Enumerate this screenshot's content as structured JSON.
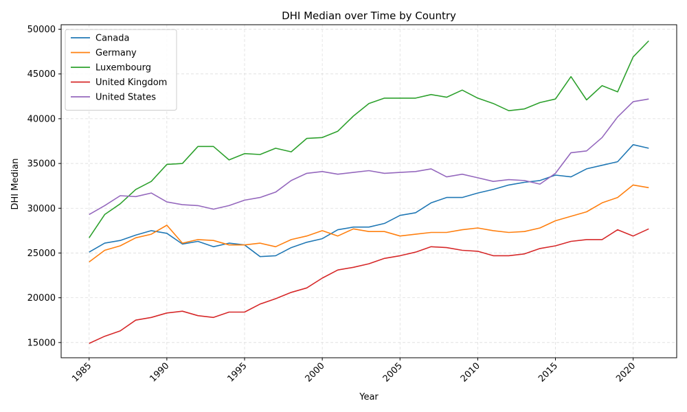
{
  "chart_data": {
    "type": "line",
    "title": "DHI Median over Time by Country",
    "xlabel": "Year",
    "ylabel": "DHI Median",
    "xlim": [
      1983.2,
      2022.8
    ],
    "ylim": [
      13300,
      50500
    ],
    "xticks": [
      1985,
      1990,
      1995,
      2000,
      2005,
      2010,
      2015,
      2020
    ],
    "yticks": [
      15000,
      20000,
      25000,
      30000,
      35000,
      40000,
      45000,
      50000
    ],
    "grid": true,
    "legend_position": "top-left",
    "x": [
      1985,
      1986,
      1987,
      1988,
      1989,
      1990,
      1991,
      1992,
      1993,
      1994,
      1995,
      1996,
      1997,
      1998,
      1999,
      2000,
      2001,
      2002,
      2003,
      2004,
      2005,
      2006,
      2007,
      2008,
      2009,
      2010,
      2011,
      2012,
      2013,
      2014,
      2015,
      2016,
      2017,
      2018,
      2019,
      2020,
      2021
    ],
    "series": [
      {
        "name": "Canada",
        "color": "#1f77b4",
        "values": [
          25100,
          26100,
          26400,
          27000,
          27500,
          27200,
          26000,
          26300,
          25700,
          26100,
          25900,
          24600,
          24700,
          25600,
          26200,
          26600,
          27600,
          27900,
          27900,
          28300,
          29200,
          29500,
          30600,
          31200,
          31200,
          31700,
          32100,
          32600,
          32900,
          33100,
          33700,
          33500,
          34400,
          34800,
          35200,
          37100,
          36700
        ]
      },
      {
        "name": "Germany",
        "color": "#ff7f0e",
        "values": [
          24000,
          25300,
          25800,
          26700,
          27100,
          28100,
          26100,
          26500,
          26400,
          25900,
          25900,
          26100,
          25700,
          26500,
          26900,
          27500,
          26900,
          27700,
          27400,
          27400,
          26900,
          27100,
          27300,
          27300,
          27600,
          27800,
          27500,
          27300,
          27400,
          27800,
          28600,
          29100,
          29600,
          30600,
          31200,
          32600,
          32300
        ]
      },
      {
        "name": "Luxembourg",
        "color": "#2ca02c",
        "values": [
          26700,
          29300,
          30500,
          32100,
          33000,
          34900,
          35000,
          36900,
          36900,
          35400,
          36100,
          36000,
          36700,
          36300,
          37800,
          37900,
          38600,
          40300,
          41700,
          42300,
          42300,
          42300,
          42700,
          42400,
          43200,
          42300,
          41700,
          40900,
          41100,
          41800,
          42200,
          44700,
          42100,
          43700,
          43000,
          46900,
          48700
        ]
      },
      {
        "name": "United Kingdom",
        "color": "#d62728",
        "values": [
          14900,
          15700,
          16300,
          17500,
          17800,
          18300,
          18500,
          18000,
          17800,
          18400,
          18400,
          19300,
          19900,
          20600,
          21100,
          22200,
          23100,
          23400,
          23800,
          24400,
          24700,
          25100,
          25700,
          25600,
          25300,
          25200,
          24700,
          24700,
          24900,
          25500,
          25800,
          26300,
          26500,
          26500,
          27600,
          26900,
          27700
        ]
      },
      {
        "name": "United States",
        "color": "#9467bd",
        "values": [
          29300,
          30300,
          31400,
          31300,
          31700,
          30700,
          30400,
          30300,
          29900,
          30300,
          30900,
          31200,
          31800,
          33100,
          33900,
          34100,
          33800,
          34000,
          34200,
          33900,
          34000,
          34100,
          34400,
          33500,
          33800,
          33400,
          33000,
          33200,
          33100,
          32700,
          33900,
          36200,
          36400,
          37900,
          40200,
          41900,
          42200
        ]
      }
    ]
  }
}
